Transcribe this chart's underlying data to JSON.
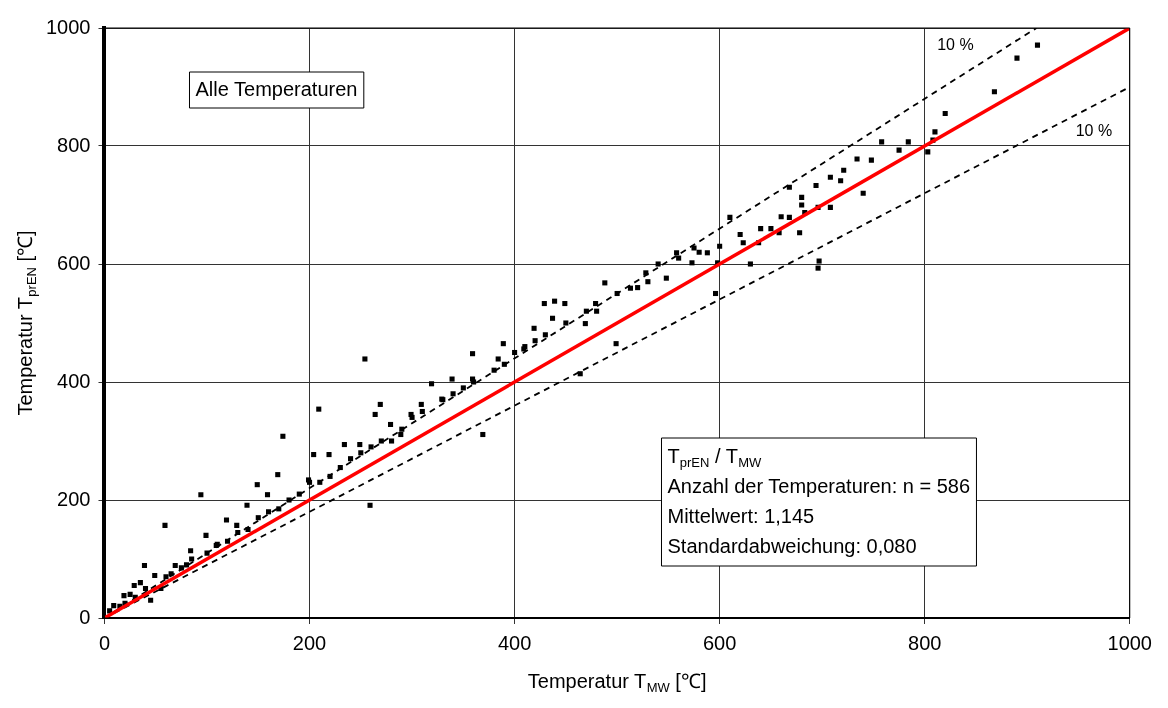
{
  "chart_data": {
    "type": "scatter",
    "xlabel": "Temperatur T$_{MW}$ [℃]",
    "ylabel": "Temperatur T$_{prEN}$ [℃]",
    "xlim": [
      0,
      1000
    ],
    "ylim": [
      0,
      1000
    ],
    "xticks": [
      0,
      200,
      400,
      600,
      800,
      1000
    ],
    "yticks": [
      0,
      200,
      400,
      600,
      800,
      1000
    ],
    "grid": true,
    "series": [
      {
        "marker": "square",
        "color": "#000000",
        "x": [
          910,
          890,
          868,
          820,
          810,
          808,
          803,
          784,
          775,
          758,
          748,
          734,
          721,
          708,
          718,
          694,
          680,
          668,
          683,
          668,
          678,
          696,
          708,
          697,
          696,
          658,
          638,
          623,
          610,
          598,
          588,
          573,
          575,
          558,
          548,
          528,
          513,
          488,
          479,
          469,
          449,
          439,
          437,
          419,
          409,
          389,
          384,
          359,
          359,
          339,
          329,
          319,
          309,
          299,
          279,
          264,
          254,
          269,
          249,
          234,
          219,
          209,
          204,
          199,
          174,
          169,
          159,
          149,
          139,
          129,
          119,
          109,
          99,
          94,
          84,
          69,
          59,
          49,
          39,
          29,
          19,
          9,
          5,
          289,
          369,
          464,
          499,
          596,
          429,
          259,
          740,
          650,
          630,
          540,
          520,
          470,
          420,
          400,
          380,
          350,
          330,
          300,
          280,
          260,
          240,
          220,
          200,
          180,
          160,
          140,
          120,
          100,
          80,
          60,
          40,
          30,
          20,
          15,
          25,
          35,
          45,
          55,
          65,
          75,
          85,
          110,
          130,
          150,
          170,
          190,
          210,
          230,
          250,
          270,
          290,
          310,
          340,
          360,
          390,
          410,
          430,
          450,
          480,
          500,
          530,
          560,
          580,
          600,
          620,
          640,
          660,
          680
        ],
        "values": [
          971,
          949,
          892,
          855,
          824,
          810,
          790,
          807,
          793,
          807,
          776,
          778,
          759,
          747,
          741,
          733,
          713,
          730,
          687,
          679,
          653,
          696,
          696,
          605,
          593,
          653,
          636,
          636,
          679,
          602,
          619,
          602,
          627,
          619,
          576,
          585,
          559,
          568,
          533,
          499,
          533,
          537,
          508,
          491,
          456,
          465,
          439,
          448,
          405,
          405,
          371,
          397,
          362,
          345,
          328,
          345,
          439,
          362,
          294,
          294,
          277,
          354,
          277,
          234,
          308,
          243,
          209,
          226,
          191,
          157,
          166,
          123,
          140,
          209,
          114,
          89,
          157,
          72,
          89,
          55,
          38,
          21,
          12,
          311,
          311,
          414,
          465,
          550,
          533,
          191,
          720,
          660,
          600,
          600,
          560,
          520,
          470,
          450,
          420,
          390,
          370,
          340,
          300,
          290,
          270,
          240,
          230,
          200,
          180,
          150,
          130,
          110,
          90,
          70,
          50,
          35,
          25,
          20,
          40,
          60,
          30,
          50,
          75,
          85,
          100,
          125,
          145,
          170,
          185,
          210,
          230,
          255,
          280,
          300,
          320,
          350,
          380,
          400,
          430,
          460,
          480,
          500,
          520,
          550,
          570,
          610,
          620,
          630,
          650,
          660,
          680,
          700
        ]
      },
      {
        "type": "line",
        "color": "#ff0000",
        "x": [
          0,
          1000
        ],
        "values": [
          0,
          1000
        ],
        "line_style": "solid",
        "marker": "none"
      },
      {
        "type": "line",
        "color": "#000000",
        "x": [
          0,
          909
        ],
        "values": [
          0,
          1000
        ],
        "line_style": "dashed",
        "marker": "none"
      },
      {
        "type": "line",
        "color": "#000000",
        "x": [
          0,
          1000
        ],
        "values": [
          0,
          900
        ],
        "line_style": "dashed",
        "marker": "none"
      }
    ],
    "annotations": [
      "Alle Temperaturen",
      "T$_{prEN}$ / T$_{MW}$",
      "Anzahl der Temperaturen: n = 586",
      "Mittelwert: 1,145",
      "Standardabweichung: 0,080",
      "10 %",
      "10 %"
    ]
  }
}
